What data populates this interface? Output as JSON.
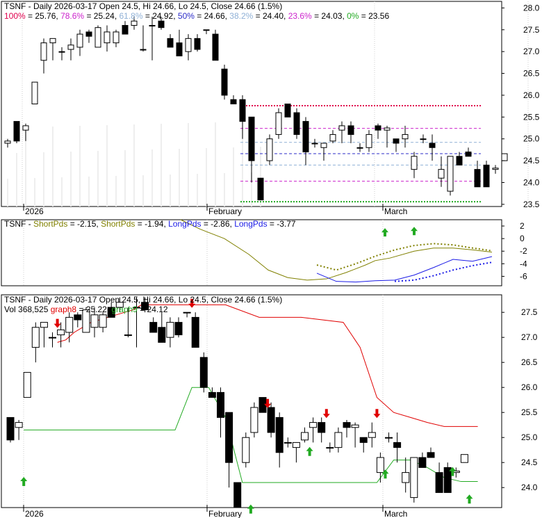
{
  "chart_data": [
    {
      "panel": "price",
      "type": "candlestick",
      "title": "TSNF - Daily 2026-03-17 Open 24.5, Hi 24.66, Lo 24.5, Close 24.66 (1.5%)",
      "fib_levels": [
        {
          "label": "100%",
          "value": 25.76,
          "text": "= 25.76, ",
          "color": "#e0004d"
        },
        {
          "label": "78.6%",
          "value": 25.24,
          "text": "= 25.24, ",
          "color": "#cc22cc"
        },
        {
          "label": "61.8%",
          "value": 24.92,
          "text": "= 24.92, ",
          "color": "#8fb0d6"
        },
        {
          "label": "50%",
          "value": 24.66,
          "text": "= 24.66, ",
          "color": "#2b2bc8"
        },
        {
          "label": "38.2%",
          "value": 24.4,
          "text": "= 24.40, ",
          "color": "#8fb0d6"
        },
        {
          "label": "23.6%",
          "value": 24.03,
          "text": "= 24.03, ",
          "color": "#cc22cc"
        },
        {
          "label": "0%",
          "value": 23.56,
          "text": "= 23.56",
          "color": "#22aa22"
        }
      ],
      "ylim": [
        23.45,
        28.15
      ],
      "y_ticks": [
        "28.0",
        "27.5",
        "27.0",
        "26.5",
        "26.0",
        "25.5",
        "25.0",
        "24.5",
        "24.0",
        "23.5"
      ],
      "x_labels": [
        "2026",
        "February",
        "March"
      ],
      "candles": [
        [
          24.9,
          25.0,
          24.8,
          24.95
        ],
        [
          25.4,
          25.4,
          24.9,
          24.95
        ],
        [
          25.2,
          25.35,
          24.95,
          25.3
        ],
        [
          25.8,
          26.3,
          25.8,
          26.3
        ],
        [
          26.8,
          27.3,
          26.5,
          27.2
        ],
        [
          27.2,
          27.3,
          26.8,
          27.3
        ],
        [
          27.0,
          27.1,
          26.8,
          27.0
        ],
        [
          27.05,
          27.3,
          26.8,
          27.15
        ],
        [
          27.1,
          27.5,
          26.9,
          27.4
        ],
        [
          27.45,
          27.5,
          27.2,
          27.35
        ],
        [
          27.1,
          27.6,
          27.1,
          27.55
        ],
        [
          27.2,
          27.6,
          27.0,
          27.45
        ],
        [
          27.2,
          27.5,
          27.1,
          27.45
        ],
        [
          27.6,
          27.7,
          27.4,
          27.4
        ],
        [
          27.6,
          27.8,
          27.5,
          27.7
        ],
        [
          27.05,
          27.6,
          27.0,
          27.05
        ],
        [
          27.6,
          27.8,
          26.8,
          27.6
        ],
        [
          27.7,
          27.8,
          27.5,
          27.55
        ],
        [
          27.3,
          27.4,
          27.1,
          27.1
        ],
        [
          27.2,
          27.5,
          26.9,
          26.9
        ],
        [
          27.0,
          27.4,
          26.8,
          27.3
        ],
        [
          27.3,
          27.4,
          27.0,
          27.05
        ],
        [
          27.5,
          27.5,
          27.4,
          27.5
        ],
        [
          27.4,
          27.5,
          26.8,
          26.8
        ],
        [
          26.6,
          26.7,
          25.9,
          26.0
        ],
        [
          25.9,
          26.0,
          25.8,
          25.8
        ],
        [
          25.9,
          26.0,
          25.0,
          25.4
        ],
        [
          25.5,
          25.5,
          24.0,
          24.5
        ],
        [
          24.1,
          24.1,
          23.6,
          23.6
        ],
        [
          24.5,
          25.1,
          24.4,
          25.0
        ],
        [
          25.1,
          25.7,
          25.0,
          25.6
        ],
        [
          25.8,
          25.8,
          25.5,
          25.5
        ],
        [
          25.6,
          25.7,
          25.0,
          25.1
        ],
        [
          25.4,
          25.5,
          24.4,
          24.7
        ],
        [
          24.9,
          25.0,
          24.8,
          24.9
        ],
        [
          24.8,
          24.9,
          24.5,
          24.9
        ],
        [
          24.95,
          25.2,
          24.9,
          25.1
        ],
        [
          25.2,
          25.4,
          24.9,
          25.3
        ],
        [
          25.3,
          25.4,
          24.9,
          25.1
        ],
        [
          24.8,
          24.9,
          24.7,
          24.8
        ],
        [
          24.8,
          25.2,
          24.7,
          25.1
        ],
        [
          25.3,
          25.35,
          25.0,
          25.2
        ],
        [
          25.2,
          25.3,
          24.8,
          25.25
        ],
        [
          25.0,
          25.0,
          24.7,
          24.9
        ],
        [
          25.0,
          25.3,
          24.8,
          25.1
        ],
        [
          24.3,
          24.7,
          24.1,
          24.6
        ],
        [
          25.0,
          25.1,
          24.9,
          25.0
        ],
        [
          24.9,
          25.1,
          24.5,
          24.8
        ],
        [
          24.1,
          24.6,
          23.9,
          24.3
        ],
        [
          23.8,
          24.6,
          23.7,
          24.6
        ],
        [
          24.6,
          24.7,
          24.4,
          24.4
        ],
        [
          24.7,
          24.8,
          24.6,
          24.6
        ],
        [
          24.3,
          24.5,
          23.9,
          23.9
        ],
        [
          24.4,
          24.5,
          23.9,
          23.9
        ],
        [
          24.3,
          24.4,
          24.2,
          24.33
        ],
        [
          24.5,
          24.66,
          24.5,
          24.66
        ]
      ]
    },
    {
      "panel": "oscillator",
      "type": "line",
      "legend_prefix": "TSNF - ",
      "series": [
        {
          "name": "ShortPds",
          "display": "ShortPds",
          "text": " = -2.15, ",
          "color": "#808000",
          "last": -2.15
        },
        {
          "name": "ShortPds2",
          "display": "ShortPds",
          "text": " = -1.94, ",
          "color": "#808000",
          "last": -1.94
        },
        {
          "name": "LongPds",
          "display": "LongPds",
          "text": " = -2.86, ",
          "color": "#1a1ae6",
          "last": -2.86
        },
        {
          "name": "LongPds2",
          "display": "LongPds",
          "text": " = -3.77",
          "color": "#1a1ae6",
          "last": -3.77
        }
      ],
      "ylim": [
        -7.5,
        3.0
      ],
      "y_ticks": [
        "2",
        "0",
        "-2",
        "-4",
        "-6"
      ],
      "short_line": [
        [
          0,
          3.0
        ],
        [
          4,
          1.5
        ],
        [
          9,
          0.0
        ],
        [
          14,
          -2.5
        ],
        [
          18,
          -5.0
        ],
        [
          22,
          -6.2
        ],
        [
          26,
          -6.6
        ],
        [
          30,
          -6.4
        ],
        [
          34,
          -5.4
        ],
        [
          38,
          -4.2
        ],
        [
          40,
          -3.5
        ],
        [
          43,
          -3.1
        ],
        [
          48,
          -2.0
        ],
        [
          52,
          -1.5
        ],
        [
          56,
          -1.5
        ],
        [
          60,
          -1.8
        ],
        [
          64,
          -2.15
        ]
      ],
      "short_line2": [
        [
          28,
          -4.2
        ],
        [
          32,
          -5.0
        ],
        [
          36,
          -4.0
        ],
        [
          40,
          -2.8
        ],
        [
          44,
          -1.8
        ],
        [
          48,
          -1.1
        ],
        [
          52,
          -0.8
        ],
        [
          56,
          -1.0
        ],
        [
          60,
          -1.5
        ],
        [
          64,
          -1.94
        ]
      ],
      "long_line": [
        [
          28,
          -5.5
        ],
        [
          32,
          -6.8
        ],
        [
          36,
          -6.9
        ],
        [
          40,
          -6.7
        ],
        [
          44,
          -6.6
        ],
        [
          48,
          -5.8
        ],
        [
          52,
          -4.6
        ],
        [
          56,
          -3.3
        ],
        [
          60,
          -3.6
        ],
        [
          64,
          -2.86
        ]
      ],
      "long_line2": [
        [
          44,
          -6.8
        ],
        [
          48,
          -6.6
        ],
        [
          52,
          -5.9
        ],
        [
          56,
          -5.0
        ],
        [
          60,
          -4.3
        ],
        [
          64,
          -3.77
        ]
      ],
      "arrows_up": [
        [
          42,
          1.0
        ],
        [
          48,
          1.2
        ]
      ]
    },
    {
      "panel": "stop",
      "type": "candlestick",
      "title": "TSNF - Daily 2026-03-17 Open 24.5, Hi 24.66, Lo 24.5, Close 24.66 (1.5%)",
      "legend": [
        {
          "text": "Vol 368,525 ",
          "color": "#000000"
        },
        {
          "text": "graph8",
          "color": "#e00000"
        },
        {
          "text": " = 25.22, ",
          "color": "#000000"
        },
        {
          "text": "graph9",
          "color": "#22aa22"
        },
        {
          "text": " = 24.12",
          "color": "#000000"
        }
      ],
      "ylim": [
        23.6,
        27.85
      ],
      "y_ticks": [
        "27.5",
        "27.0",
        "26.5",
        "26.0",
        "25.5",
        "25.0",
        "24.5",
        "24.0"
      ],
      "x_labels": [
        "2026",
        "February",
        "March"
      ],
      "red_line": [
        [
          6,
          26.9
        ],
        [
          7,
          26.95
        ],
        [
          8,
          27.1
        ],
        [
          9,
          27.2
        ],
        [
          10,
          27.3
        ],
        [
          11,
          27.35
        ],
        [
          12,
          27.4
        ],
        [
          13,
          27.45
        ],
        [
          14,
          27.5
        ],
        [
          15,
          27.55
        ],
        [
          16,
          27.65
        ],
        [
          17,
          27.65
        ],
        [
          18,
          27.65
        ],
        [
          19,
          27.65
        ],
        [
          20,
          27.65
        ],
        [
          21,
          27.65
        ],
        [
          22,
          27.65
        ],
        [
          23,
          27.65
        ],
        [
          26,
          27.65
        ],
        [
          30,
          27.4
        ],
        [
          35,
          27.4
        ],
        [
          40,
          27.3
        ],
        [
          42,
          26.8
        ],
        [
          44,
          25.8
        ],
        [
          46,
          25.5
        ],
        [
          48,
          25.4
        ],
        [
          50,
          25.3
        ],
        [
          52,
          25.22
        ],
        [
          56,
          25.22
        ]
      ],
      "green_line": [
        [
          2,
          25.15
        ],
        [
          20,
          25.15
        ],
        [
          22,
          26.0
        ],
        [
          24,
          26.0
        ],
        [
          26,
          25.4
        ],
        [
          28,
          24.1
        ],
        [
          30,
          24.1
        ],
        [
          40,
          24.1
        ],
        [
          44,
          24.1
        ],
        [
          46,
          24.55
        ],
        [
          48,
          24.55
        ],
        [
          50,
          24.4
        ],
        [
          52,
          24.2
        ],
        [
          54,
          24.12
        ],
        [
          56,
          24.12
        ]
      ],
      "arrows_down": [
        [
          6,
          27.3
        ],
        [
          22,
          27.7
        ],
        [
          31,
          25.7
        ],
        [
          38,
          25.5
        ],
        [
          44,
          25.5
        ]
      ],
      "arrows_up": [
        [
          2,
          24.1
        ],
        [
          29,
          23.55
        ],
        [
          36,
          24.7
        ],
        [
          45,
          24.25
        ],
        [
          53,
          24.3
        ],
        [
          55,
          23.75
        ]
      ]
    }
  ]
}
